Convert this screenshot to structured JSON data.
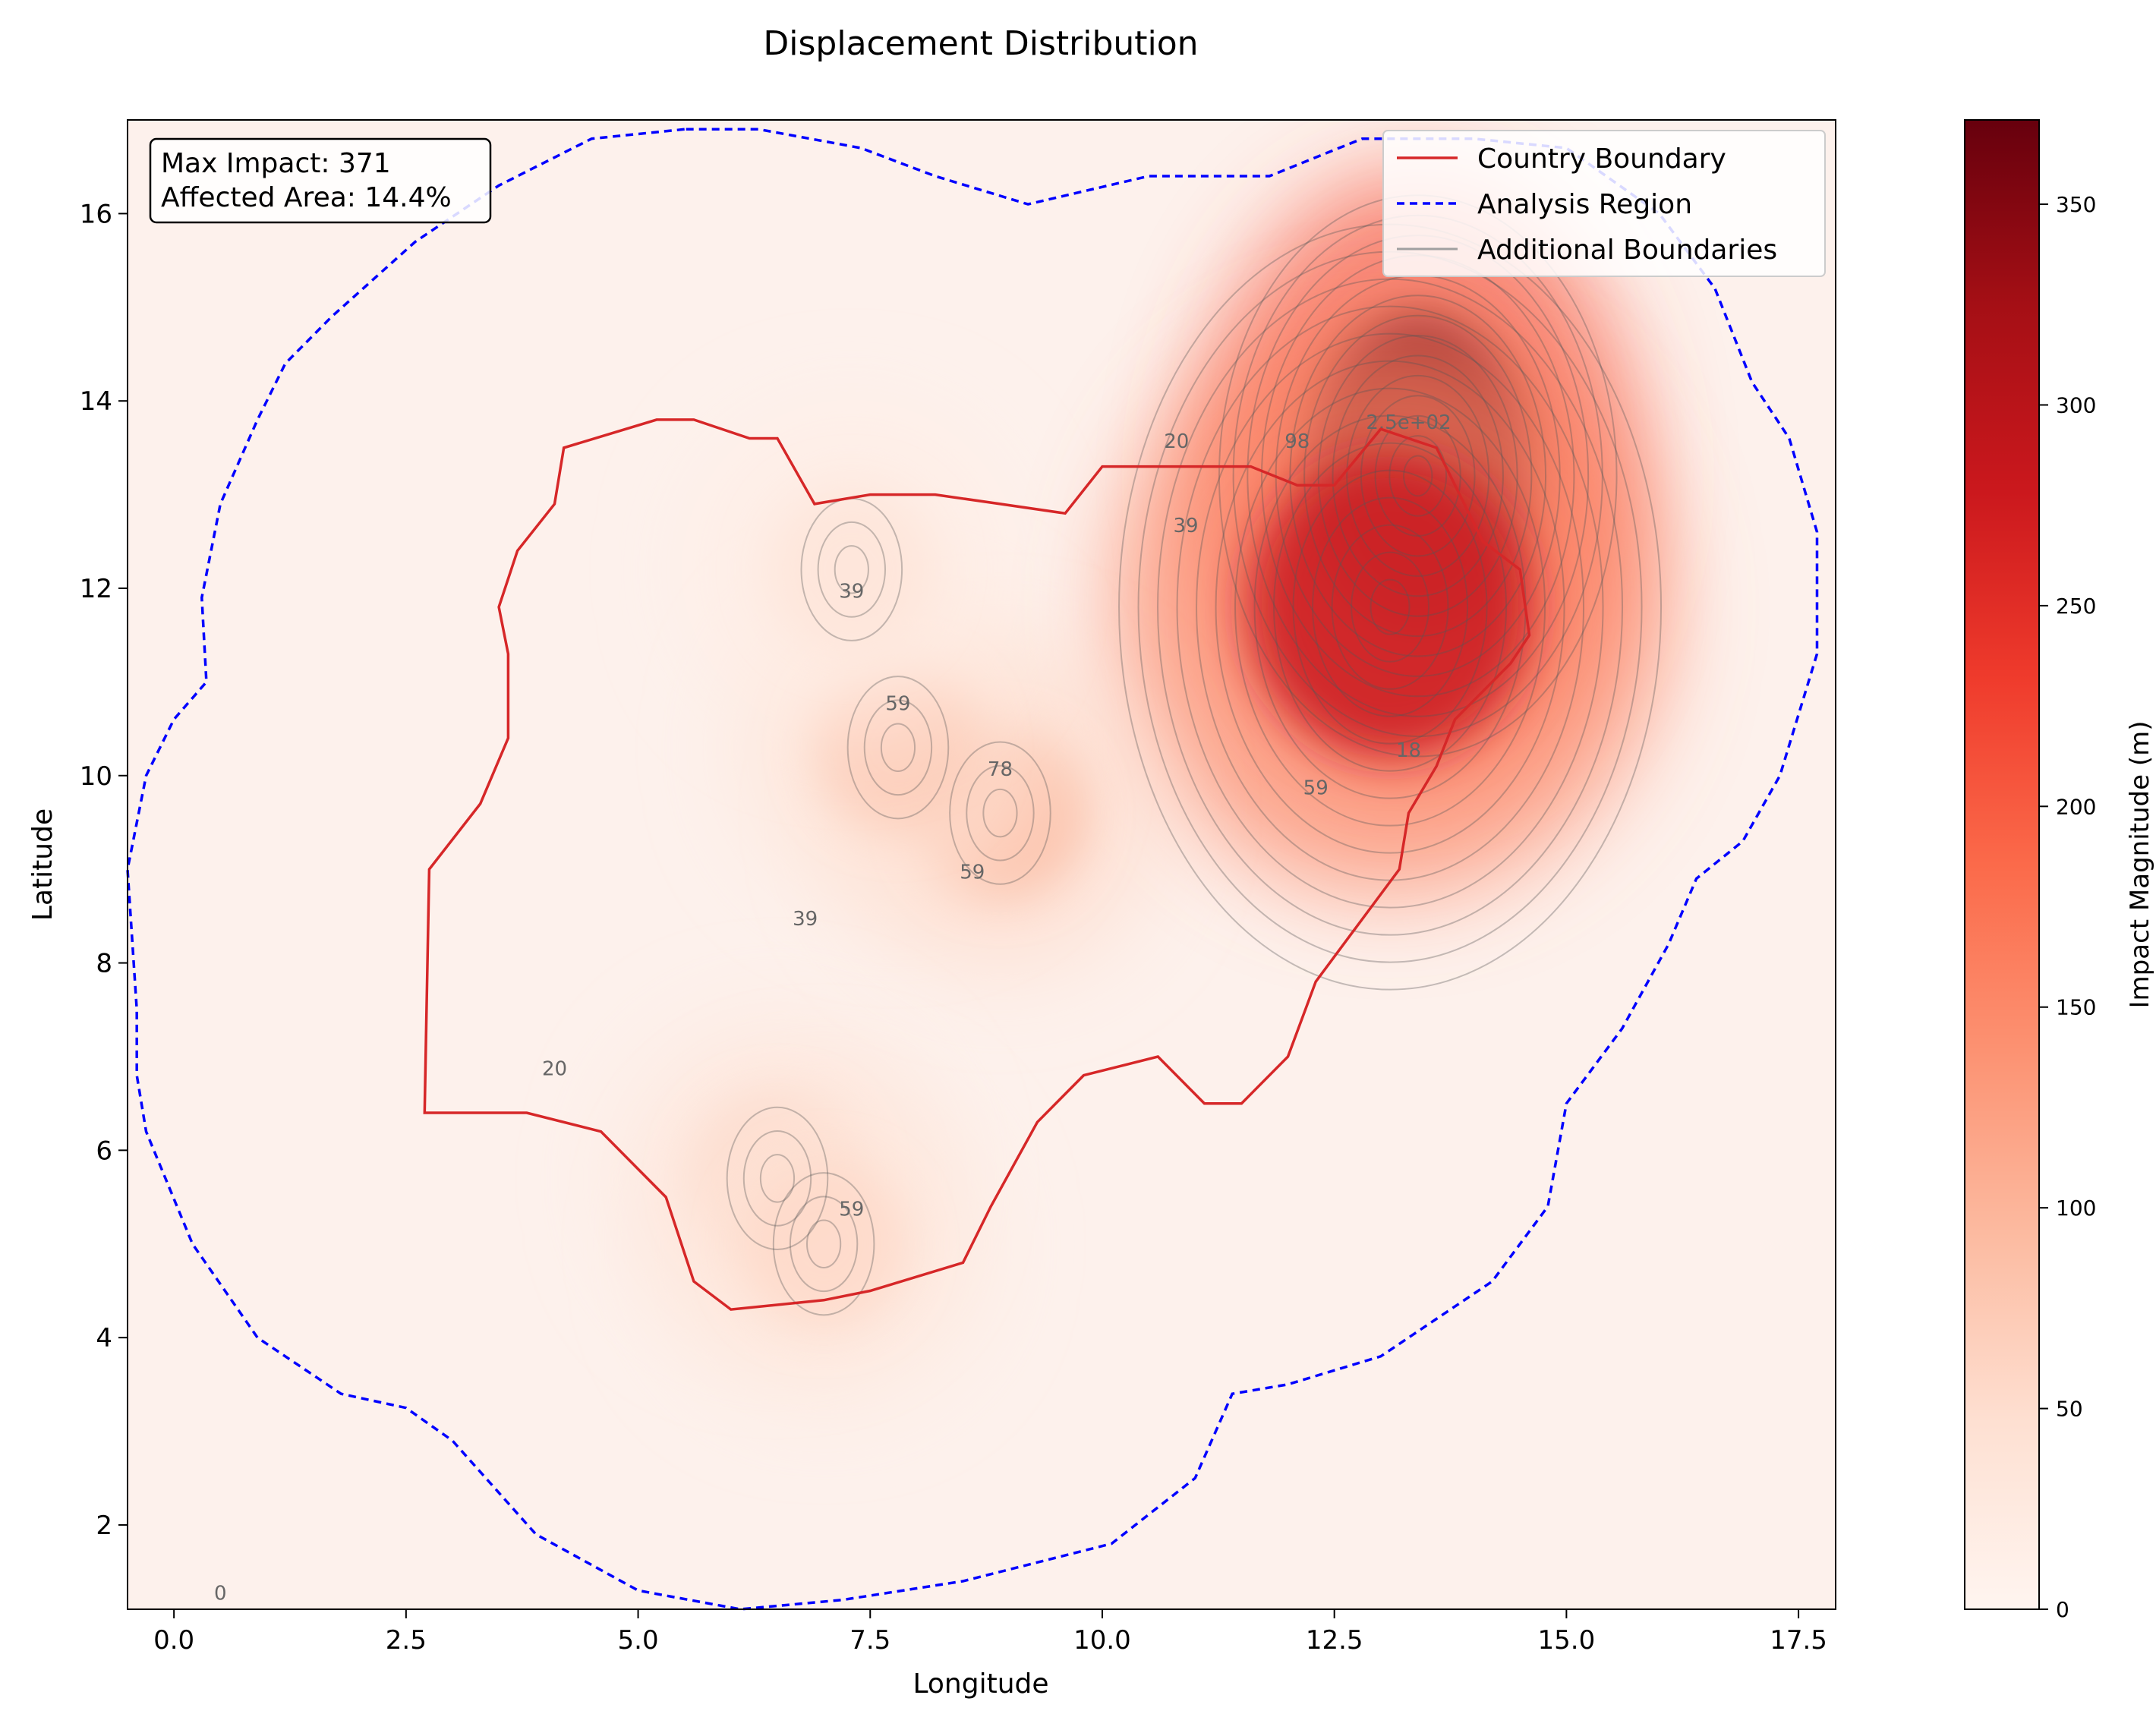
{
  "chart_data": {
    "type": "heatmap",
    "title": "Displacement Distribution",
    "xlabel": "Longitude",
    "ylabel": "Latitude",
    "xlim": [
      -0.5,
      17.9
    ],
    "ylim": [
      1.1,
      17.0
    ],
    "x_ticks": [
      0.0,
      2.5,
      5.0,
      7.5,
      10.0,
      12.5,
      15.0,
      17.5
    ],
    "x_tick_labels": [
      "0.0",
      "2.5",
      "5.0",
      "7.5",
      "10.0",
      "12.5",
      "15.0",
      "17.5"
    ],
    "y_ticks": [
      2,
      4,
      6,
      8,
      10,
      12,
      14,
      16
    ],
    "y_tick_labels": [
      "2",
      "4",
      "6",
      "8",
      "10",
      "12",
      "14",
      "16"
    ],
    "grid": false,
    "colormap": "Reds",
    "colorbar": {
      "label": "Impact Magnitude (m)",
      "range": [
        0,
        371
      ],
      "ticks": [
        0,
        50,
        100,
        150,
        200,
        250,
        300,
        350
      ],
      "tick_labels": [
        "0",
        "50",
        "100",
        "150",
        "200",
        "250",
        "300",
        "350"
      ]
    },
    "info_box": {
      "line1": "Max Impact: 371",
      "line2": "Affected Area: 14.4%"
    },
    "legend": {
      "placement": "top-right",
      "entries": [
        {
          "label": "Country Boundary",
          "color": "#d62728",
          "style": "solid"
        },
        {
          "label": "Analysis Region",
          "color": "#0000ff",
          "style": "dashed"
        },
        {
          "label": "Additional Boundaries",
          "color": "#a0a0a0",
          "style": "solid"
        }
      ]
    },
    "hotspots": [
      {
        "lon": 13.4,
        "lat": 13.2,
        "value": 371
      },
      {
        "lon": 13.1,
        "lat": 11.8,
        "value": 280
      },
      {
        "lon": 8.9,
        "lat": 9.6,
        "value": 95
      },
      {
        "lon": 7.8,
        "lat": 10.3,
        "value": 70
      },
      {
        "lon": 6.5,
        "lat": 5.7,
        "value": 60
      },
      {
        "lon": 7.0,
        "lat": 5.0,
        "value": 55
      },
      {
        "lon": 7.3,
        "lat": 12.2,
        "value": 35
      }
    ],
    "contour_labels": [
      {
        "text": "20",
        "lon": 10.8,
        "lat": 13.5
      },
      {
        "text": "39",
        "lon": 10.9,
        "lat": 12.6
      },
      {
        "text": "98",
        "lon": 12.1,
        "lat": 13.5
      },
      {
        "text": "59",
        "lon": 12.3,
        "lat": 9.8
      },
      {
        "text": "18",
        "lon": 13.3,
        "lat": 10.2
      },
      {
        "text": "2.5e+02",
        "lon": 13.3,
        "lat": 13.7
      },
      {
        "text": "39",
        "lon": 7.3,
        "lat": 11.9
      },
      {
        "text": "59",
        "lon": 7.8,
        "lat": 10.7
      },
      {
        "text": "78",
        "lon": 8.9,
        "lat": 10.0
      },
      {
        "text": "59",
        "lon": 8.6,
        "lat": 8.9
      },
      {
        "text": "39",
        "lon": 6.8,
        "lat": 8.4
      },
      {
        "text": "20",
        "lon": 4.1,
        "lat": 6.8
      },
      {
        "text": "59",
        "lon": 7.3,
        "lat": 5.3
      },
      {
        "text": "0",
        "lon": 0.5,
        "lat": 1.2
      }
    ],
    "country_boundary": [
      [
        2.7,
        6.4
      ],
      [
        2.75,
        9.0
      ],
      [
        3.3,
        9.7
      ],
      [
        3.6,
        10.4
      ],
      [
        3.6,
        11.3
      ],
      [
        3.5,
        11.8
      ],
      [
        3.7,
        12.4
      ],
      [
        4.1,
        12.9
      ],
      [
        4.2,
        13.5
      ],
      [
        5.2,
        13.8
      ],
      [
        5.6,
        13.8
      ],
      [
        6.2,
        13.6
      ],
      [
        6.5,
        13.6
      ],
      [
        6.9,
        12.9
      ],
      [
        7.5,
        13.0
      ],
      [
        8.2,
        13.0
      ],
      [
        8.9,
        12.9
      ],
      [
        9.6,
        12.8
      ],
      [
        10.0,
        13.3
      ],
      [
        10.7,
        13.3
      ],
      [
        11.6,
        13.3
      ],
      [
        12.1,
        13.1
      ],
      [
        12.5,
        13.1
      ],
      [
        13.0,
        13.7
      ],
      [
        13.6,
        13.5
      ],
      [
        14.1,
        12.5
      ],
      [
        14.5,
        12.2
      ],
      [
        14.6,
        11.5
      ],
      [
        14.4,
        11.2
      ],
      [
        13.8,
        10.6
      ],
      [
        13.6,
        10.1
      ],
      [
        13.3,
        9.6
      ],
      [
        13.2,
        9.0
      ],
      [
        12.9,
        8.6
      ],
      [
        12.3,
        7.8
      ],
      [
        12.0,
        7.0
      ],
      [
        11.5,
        6.5
      ],
      [
        11.1,
        6.5
      ],
      [
        10.6,
        7.0
      ],
      [
        10.2,
        6.9
      ],
      [
        9.8,
        6.8
      ],
      [
        9.3,
        6.3
      ],
      [
        8.8,
        5.4
      ],
      [
        8.5,
        4.8
      ],
      [
        7.5,
        4.5
      ],
      [
        7.0,
        4.4
      ],
      [
        6.0,
        4.3
      ],
      [
        5.6,
        4.6
      ],
      [
        5.3,
        5.5
      ],
      [
        4.6,
        6.2
      ],
      [
        3.8,
        6.4
      ],
      [
        2.7,
        6.4
      ]
    ],
    "analysis_region": [
      [
        5.5,
        16.9
      ],
      [
        4.5,
        16.8
      ],
      [
        3.5,
        16.3
      ],
      [
        2.6,
        15.7
      ],
      [
        1.7,
        14.9
      ],
      [
        1.2,
        14.4
      ],
      [
        0.9,
        13.8
      ],
      [
        0.5,
        12.9
      ],
      [
        0.3,
        11.9
      ],
      [
        0.35,
        11.0
      ],
      [
        0.0,
        10.6
      ],
      [
        -0.3,
        10.0
      ],
      [
        -0.5,
        9.0
      ],
      [
        -0.4,
        7.5
      ],
      [
        -0.4,
        6.8
      ],
      [
        -0.3,
        6.2
      ],
      [
        0.2,
        5.0
      ],
      [
        0.9,
        4.0
      ],
      [
        1.8,
        3.4
      ],
      [
        2.5,
        3.25
      ],
      [
        3.0,
        2.9
      ],
      [
        3.9,
        1.9
      ],
      [
        5.0,
        1.3
      ],
      [
        6.1,
        1.1
      ],
      [
        7.2,
        1.2
      ],
      [
        8.5,
        1.4
      ],
      [
        10.1,
        1.8
      ],
      [
        11.0,
        2.5
      ],
      [
        11.4,
        3.4
      ],
      [
        12.0,
        3.5
      ],
      [
        13.0,
        3.8
      ],
      [
        14.2,
        4.6
      ],
      [
        14.8,
        5.4
      ],
      [
        15.0,
        6.5
      ],
      [
        15.6,
        7.3
      ],
      [
        16.1,
        8.2
      ],
      [
        16.4,
        8.9
      ],
      [
        16.9,
        9.3
      ],
      [
        17.3,
        10.0
      ],
      [
        17.7,
        11.3
      ],
      [
        17.7,
        12.6
      ],
      [
        17.4,
        13.6
      ],
      [
        17.0,
        14.2
      ],
      [
        16.6,
        15.2
      ],
      [
        16.0,
        16.0
      ],
      [
        15.0,
        16.7
      ],
      [
        14.0,
        16.8
      ],
      [
        12.8,
        16.8
      ],
      [
        11.8,
        16.4
      ],
      [
        10.5,
        16.4
      ],
      [
        9.2,
        16.1
      ],
      [
        8.2,
        16.4
      ],
      [
        7.4,
        16.7
      ],
      [
        6.3,
        16.9
      ],
      [
        5.5,
        16.9
      ]
    ]
  }
}
